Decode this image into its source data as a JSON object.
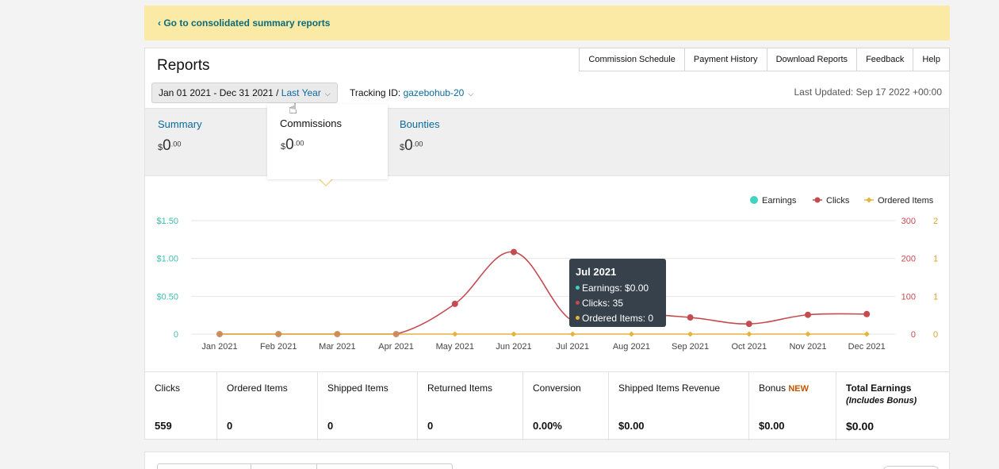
{
  "banner": {
    "link": "‹ Go to consolidated summary reports"
  },
  "header": {
    "title": "Reports",
    "tabs": [
      "Commission Schedule",
      "Payment History",
      "Download Reports",
      "Feedback",
      "Help"
    ]
  },
  "filters": {
    "date_range": "Jan 01 2021 - Dec 31 2021 / ",
    "date_preset": "Last Year",
    "tracking_label": "Tracking ID: ",
    "tracking_id": "gazebohub-20",
    "last_updated": "Last Updated: Sep 17 2022 +00:00"
  },
  "summary": {
    "items": [
      {
        "label": "Summary",
        "currency": "$",
        "whole": "0",
        "cents": ".00"
      },
      {
        "label": "Commissions",
        "currency": "$",
        "whole": "0",
        "cents": ".00"
      },
      {
        "label": "Bounties",
        "currency": "$",
        "whole": "0",
        "cents": ".00"
      }
    ]
  },
  "colors": {
    "earnings": "#3fd3c0",
    "clicks": "#c44b50",
    "ordered": "#e6b43c"
  },
  "chart_data": {
    "type": "line",
    "categories": [
      "Jan 2021",
      "Feb 2021",
      "Mar 2021",
      "Apr 2021",
      "May 2021",
      "Jun 2021",
      "Jul 2021",
      "Aug 2021",
      "Sep 2021",
      "Oct 2021",
      "Nov 2021",
      "Dec 2021"
    ],
    "series": [
      {
        "name": "Earnings",
        "axis": "left",
        "values": [
          0,
          0,
          0,
          0,
          0,
          0,
          0,
          0,
          0,
          0,
          0,
          0
        ]
      },
      {
        "name": "Clicks",
        "axis": "right1",
        "values": [
          0,
          0,
          0,
          0,
          80,
          217,
          35,
          52,
          44,
          27,
          51,
          53
        ]
      },
      {
        "name": "Ordered Items",
        "axis": "right2",
        "values": [
          0,
          0,
          0,
          0,
          0,
          0,
          0,
          0,
          0,
          0,
          0,
          0
        ]
      }
    ],
    "left_axis": {
      "ticks": [
        "0",
        "$0.50",
        "$1.00",
        "$1.50"
      ],
      "ylim": [
        0,
        1.5
      ]
    },
    "right1_axis": {
      "ticks": [
        "0",
        "100",
        "200",
        "300"
      ],
      "ylim": [
        0,
        300
      ]
    },
    "right2_axis": {
      "ticks": [
        "0",
        "1",
        "1",
        "2"
      ]
    },
    "legend": [
      "Earnings",
      "Clicks",
      "Ordered Items"
    ],
    "legend_position": "top-right",
    "grid": true
  },
  "tooltip": {
    "title": "Jul 2021",
    "rows": [
      "Earnings: $0.00",
      "Clicks: 35",
      "Ordered Items: 0"
    ]
  },
  "metrics": [
    {
      "label": "Clicks",
      "value": "559"
    },
    {
      "label": "Ordered Items",
      "value": "0"
    },
    {
      "label": "Shipped Items",
      "value": "0"
    },
    {
      "label": "Returned Items",
      "value": "0"
    },
    {
      "label": "Conversion",
      "value": "0.00%"
    },
    {
      "label": "Shipped Items Revenue",
      "value": "$0.00"
    },
    {
      "label": "Bonus ",
      "badge": "NEW",
      "value": "$0.00"
    },
    {
      "label": "Total Earnings",
      "sub": "(Includes Bonus)",
      "value": "$0.00"
    }
  ]
}
